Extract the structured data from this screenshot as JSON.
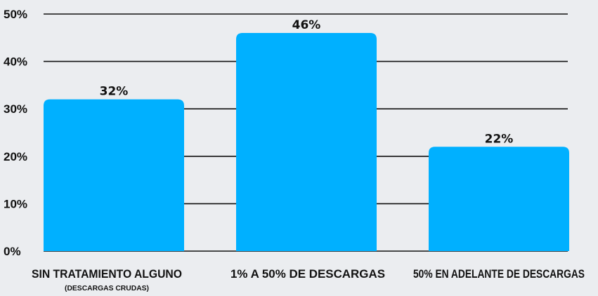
{
  "chart_data": {
    "type": "bar",
    "categories": [
      "SIN TRATAMIENTO ALGUNO",
      "1% A 50% DE DESCARGAS",
      "50% EN ADELANTE DE DESCARGAS"
    ],
    "category_sublabels": [
      "(DESCARGAS CRUDAS)",
      "",
      ""
    ],
    "values": [
      32,
      46,
      22
    ],
    "data_labels": [
      "32%",
      "46%",
      "22%"
    ],
    "yticks": [
      0,
      10,
      20,
      30,
      40,
      50
    ],
    "ytick_labels": [
      "0%",
      "10%",
      "20%",
      "30%",
      "40%",
      "50%"
    ],
    "ylim": [
      0,
      50
    ],
    "grid": true,
    "legend": "none",
    "title": "",
    "xlabel": "",
    "ylabel": "",
    "colors": {
      "bar": "#00b0ff",
      "grid": "#111111",
      "background": "#ebedf0",
      "text": "#111111"
    }
  }
}
